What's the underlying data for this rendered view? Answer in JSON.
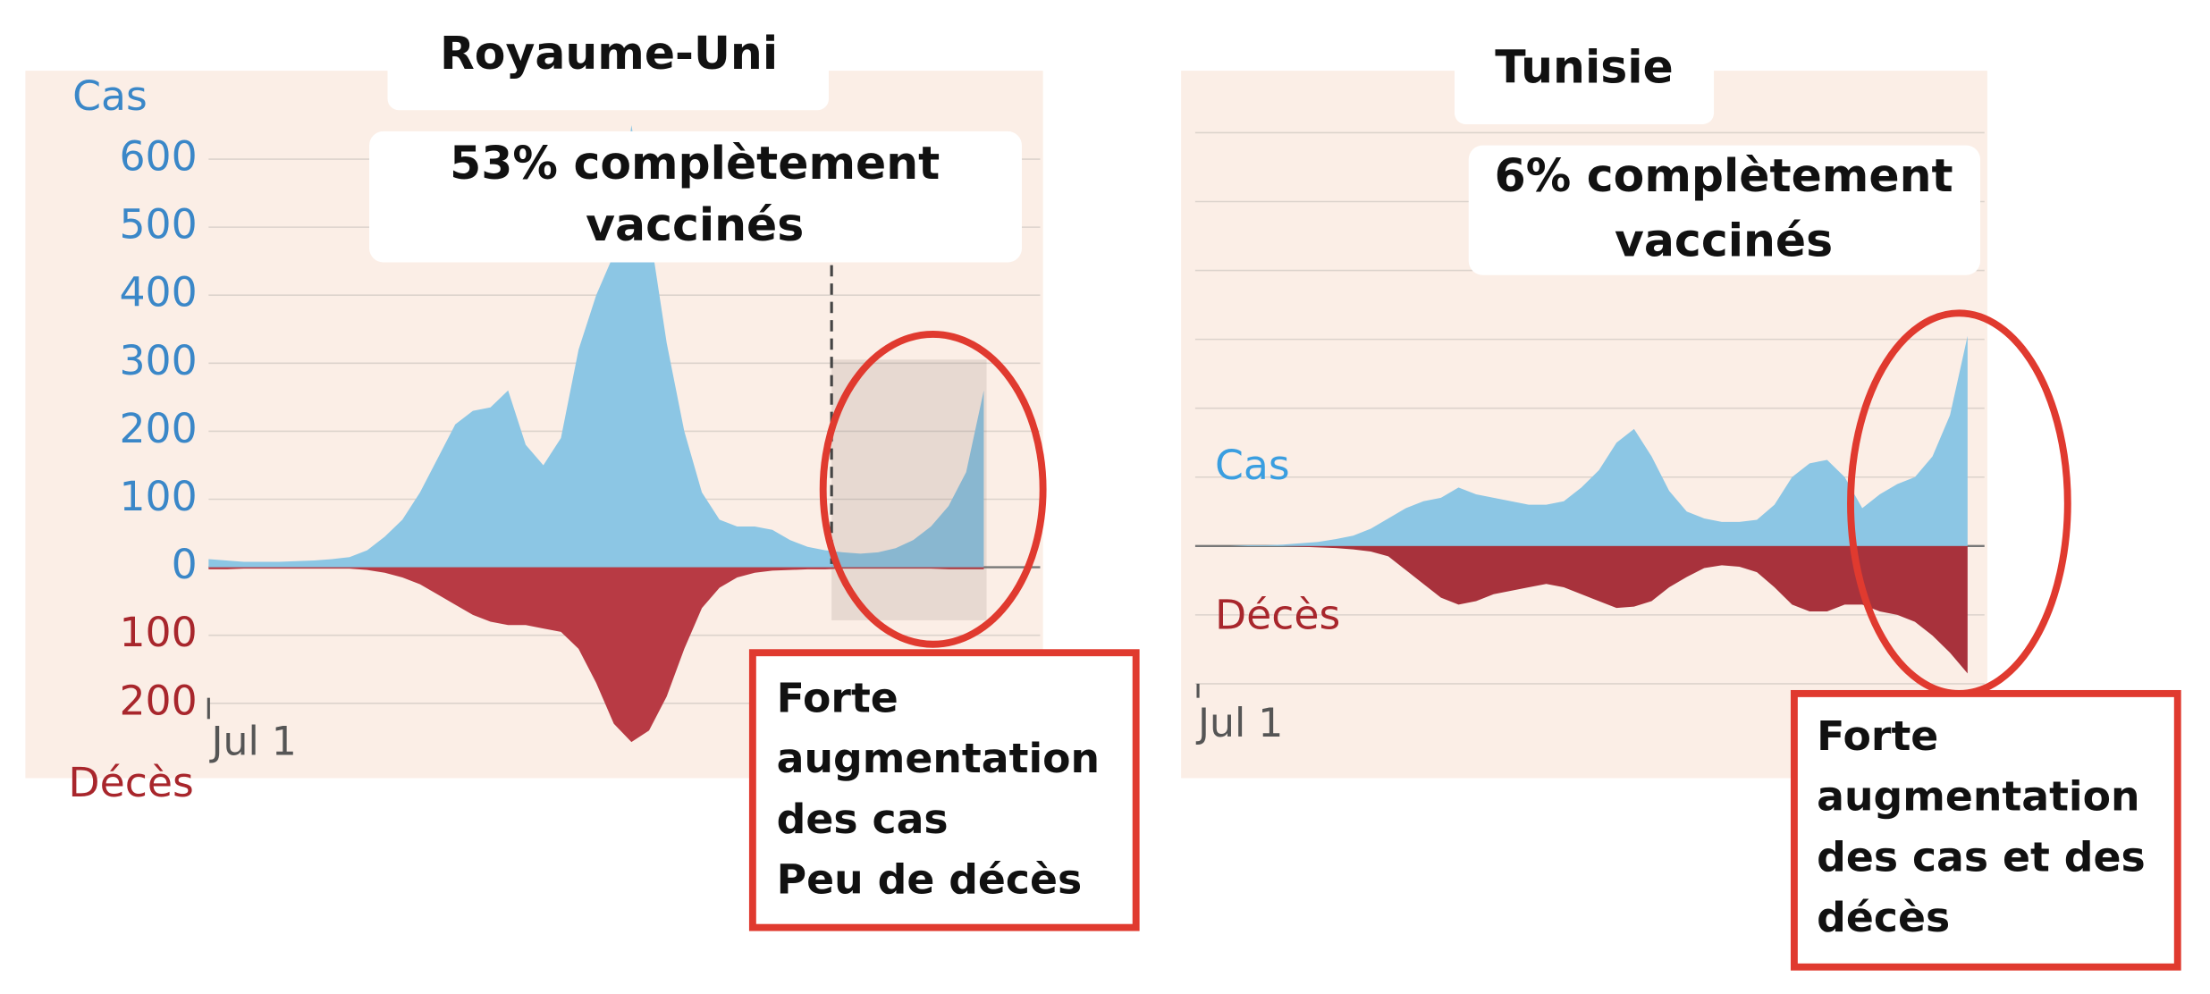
{
  "chart_data": [
    {
      "type": "area",
      "title": "Royaume-Uni",
      "subtitle": [
        "53% complètement",
        "vaccinés"
      ],
      "annotation": [
        "Forte",
        "augmentation",
        "des cas",
        "Peu de décès"
      ],
      "categories": [
        "Jul 1",
        null,
        null,
        null,
        null,
        null,
        null,
        null,
        null,
        null,
        null,
        null,
        null,
        null,
        null,
        null,
        null,
        null,
        null,
        null,
        null,
        null,
        null,
        null,
        null,
        null,
        null,
        null,
        null,
        null,
        null,
        null,
        null,
        null,
        null,
        null,
        null,
        null,
        null,
        null,
        null,
        null,
        null,
        null,
        null
      ],
      "series": [
        {
          "name": "Cas",
          "color": "#8cc6e4",
          "label_color": "#3a87c8",
          "values": [
            12,
            10,
            8,
            8,
            8,
            9,
            10,
            12,
            15,
            25,
            45,
            70,
            110,
            160,
            210,
            230,
            235,
            260,
            180,
            150,
            190,
            320,
            400,
            460,
            650,
            500,
            330,
            200,
            110,
            70,
            60,
            60,
            55,
            40,
            30,
            25,
            22,
            20,
            22,
            28,
            40,
            60,
            90,
            140,
            260
          ]
        },
        {
          "name": "Décès",
          "color": "#b83a44",
          "label_color": "#a8262c",
          "values": [
            -3,
            -3,
            -2,
            -2,
            -2,
            -2,
            -2,
            -2,
            -2,
            -4,
            -8,
            -15,
            -25,
            -40,
            -55,
            -70,
            -80,
            -85,
            -85,
            -90,
            -95,
            -120,
            -170,
            -230,
            -257,
            -240,
            -190,
            -120,
            -60,
            -30,
            -15,
            -8,
            -5,
            -4,
            -3,
            -3,
            -2,
            -2,
            -2,
            -2,
            -2,
            -2,
            -3,
            -3,
            -3
          ]
        }
      ],
      "ylim": [
        -310,
        730
      ],
      "yticks": [
        600,
        500,
        400,
        300,
        200,
        100,
        0,
        {
          "value": -100,
          "label": "100"
        },
        {
          "value": -200,
          "label": "200"
        }
      ],
      "ytick_labels": true,
      "grid": true
    },
    {
      "type": "area",
      "title": "Tunisie",
      "subtitle": [
        "6% complètement",
        "vaccinés"
      ],
      "annotation": [
        "Forte",
        "augmentation",
        "des cas et des",
        "décès"
      ],
      "categories": [
        "Jul 1",
        null,
        null,
        null,
        null,
        null,
        null,
        null,
        null,
        null,
        null,
        null,
        null,
        null,
        null,
        null,
        null,
        null,
        null,
        null,
        null,
        null,
        null,
        null,
        null,
        null,
        null,
        null,
        null,
        null,
        null,
        null,
        null,
        null,
        null,
        null,
        null,
        null,
        null,
        null,
        null,
        null,
        null,
        null,
        null
      ],
      "series": [
        {
          "name": "Cas",
          "color": "#8cc6e4",
          "label_color": "#3a9ee0",
          "values": [
            0,
            0,
            0,
            1,
            1,
            2,
            4,
            6,
            10,
            15,
            25,
            40,
            55,
            65,
            70,
            85,
            75,
            70,
            65,
            60,
            60,
            65,
            85,
            110,
            150,
            170,
            130,
            80,
            50,
            40,
            35,
            35,
            38,
            60,
            100,
            120,
            125,
            100,
            55,
            75,
            90,
            100,
            130,
            190,
            305
          ]
        },
        {
          "name": "Décès",
          "color": "#a8323c",
          "label_color": "#a8262c",
          "values": [
            0,
            0,
            0,
            0,
            0,
            0,
            -1,
            -2,
            -3,
            -5,
            -8,
            -15,
            -35,
            -55,
            -75,
            -85,
            -80,
            -70,
            -65,
            -60,
            -55,
            -60,
            -70,
            -80,
            -90,
            -88,
            -80,
            -60,
            -45,
            -32,
            -28,
            -30,
            -38,
            -60,
            -85,
            -95,
            -95,
            -85,
            -85,
            -95,
            -100,
            -110,
            -130,
            -155,
            -185
          ]
        }
      ],
      "ylim": [
        -337,
        690
      ],
      "yticks": [
        600,
        500,
        400,
        300,
        200,
        100,
        0,
        -100,
        -200
      ],
      "ytick_labels": false,
      "grid": true
    }
  ]
}
